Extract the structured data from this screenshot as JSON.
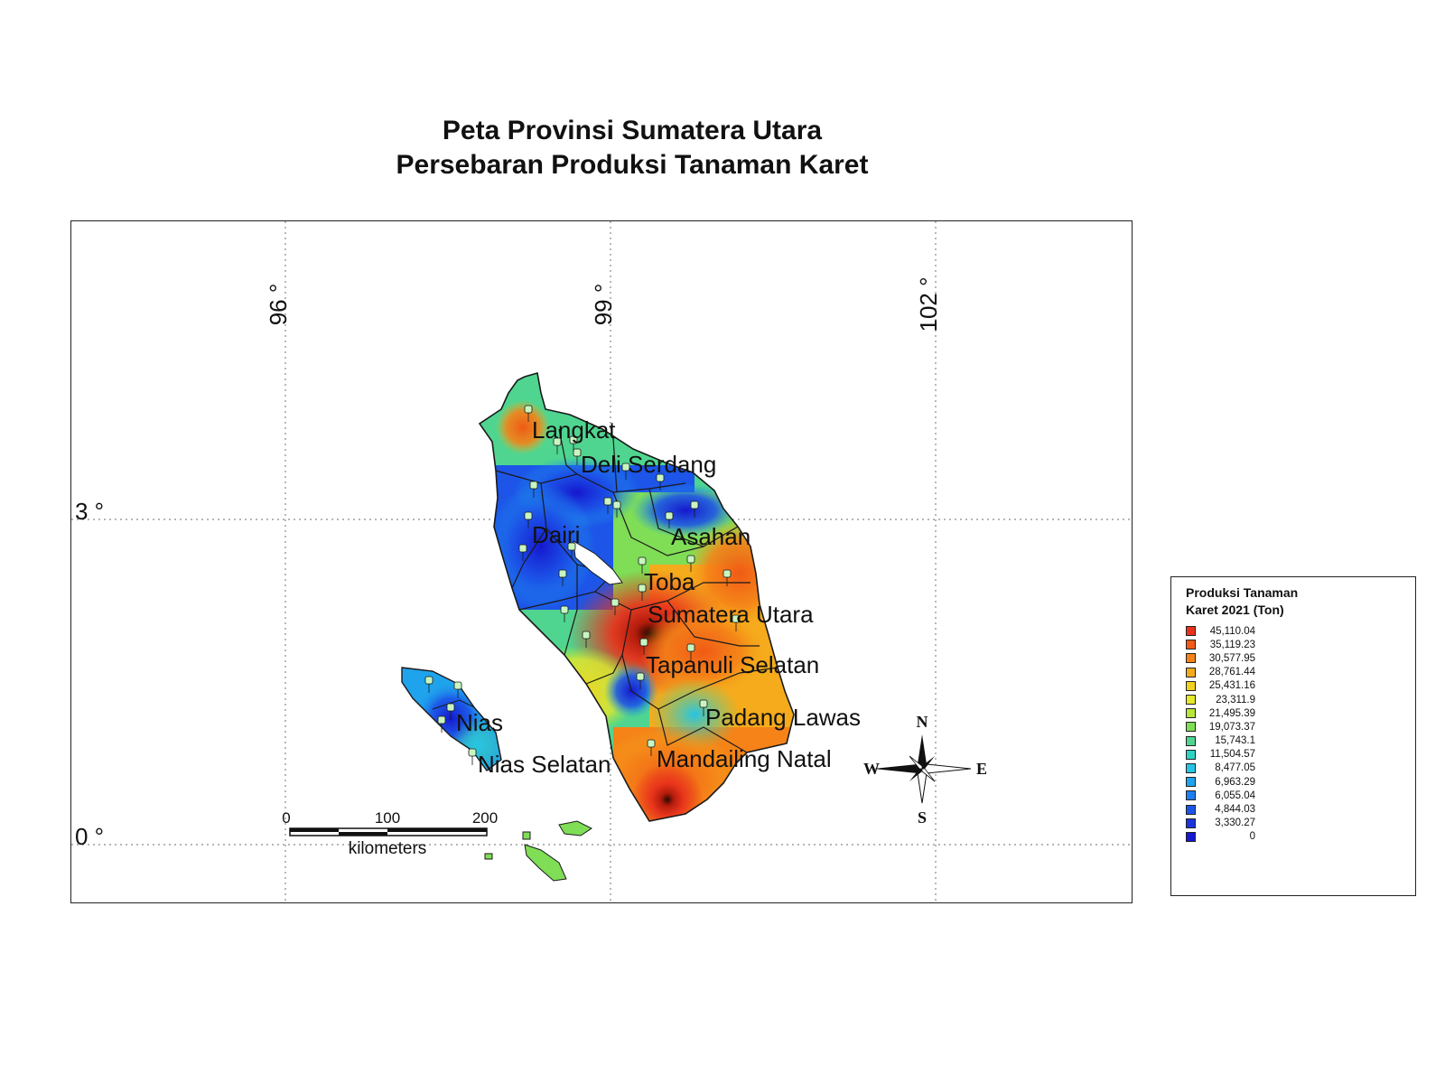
{
  "title": {
    "line1": "Peta Provinsi Sumatera Utara",
    "line2": "Persebaran Produksi Tanaman Karet"
  },
  "map": {
    "grid": {
      "longitudes": [
        "96 °",
        "99 °",
        "102 °"
      ],
      "latitudes": [
        "3 °",
        "0 °"
      ]
    },
    "region_labels": [
      "Langkat",
      "Deli Serdang",
      "Asahan",
      "Dairi",
      "Toba",
      "Sumatera Utara",
      "Tapanuli Selatan",
      "Padang Lawas",
      "Nias",
      "Nias Selatan",
      "Mandailing Natal"
    ],
    "scale_bar": {
      "ticks": [
        "0",
        "100",
        "200"
      ],
      "unit": "kilometers"
    },
    "compass": {
      "n": "N",
      "s": "S",
      "e": "E",
      "w": "W"
    },
    "colors": {
      "high": "#d7301f",
      "mid": "#f5e426",
      "low": "#1a3fd9",
      "outline": "#1a1a1a",
      "grid": "#888888"
    }
  },
  "legend": {
    "title_line1": "Produksi Tanaman",
    "title_line2": "Karet 2021 (Ton)",
    "classes": [
      {
        "value": "45,110.04",
        "color": "#e8321c"
      },
      {
        "value": "35,119.23",
        "color": "#f05a16"
      },
      {
        "value": "30,577.95",
        "color": "#f58318"
      },
      {
        "value": "28,761.44",
        "color": "#f5ab1c"
      },
      {
        "value": "25,431.16",
        "color": "#f2d21f"
      },
      {
        "value": "23,311.9",
        "color": "#e6e82a"
      },
      {
        "value": "21,495.39",
        "color": "#b7e53a"
      },
      {
        "value": "19,073.37",
        "color": "#7fdd56"
      },
      {
        "value": "15,743.1",
        "color": "#4fd58f"
      },
      {
        "value": "11,504.57",
        "color": "#2fd2c3"
      },
      {
        "value": "8,477.05",
        "color": "#25c5e6"
      },
      {
        "value": "6,963.29",
        "color": "#1fa3ec"
      },
      {
        "value": "6,055.04",
        "color": "#1d7ef0"
      },
      {
        "value": "4,844.03",
        "color": "#1c55e8"
      },
      {
        "value": "3,330.27",
        "color": "#1c34dc"
      },
      {
        "value": "0",
        "color": "#1518d0"
      }
    ]
  }
}
